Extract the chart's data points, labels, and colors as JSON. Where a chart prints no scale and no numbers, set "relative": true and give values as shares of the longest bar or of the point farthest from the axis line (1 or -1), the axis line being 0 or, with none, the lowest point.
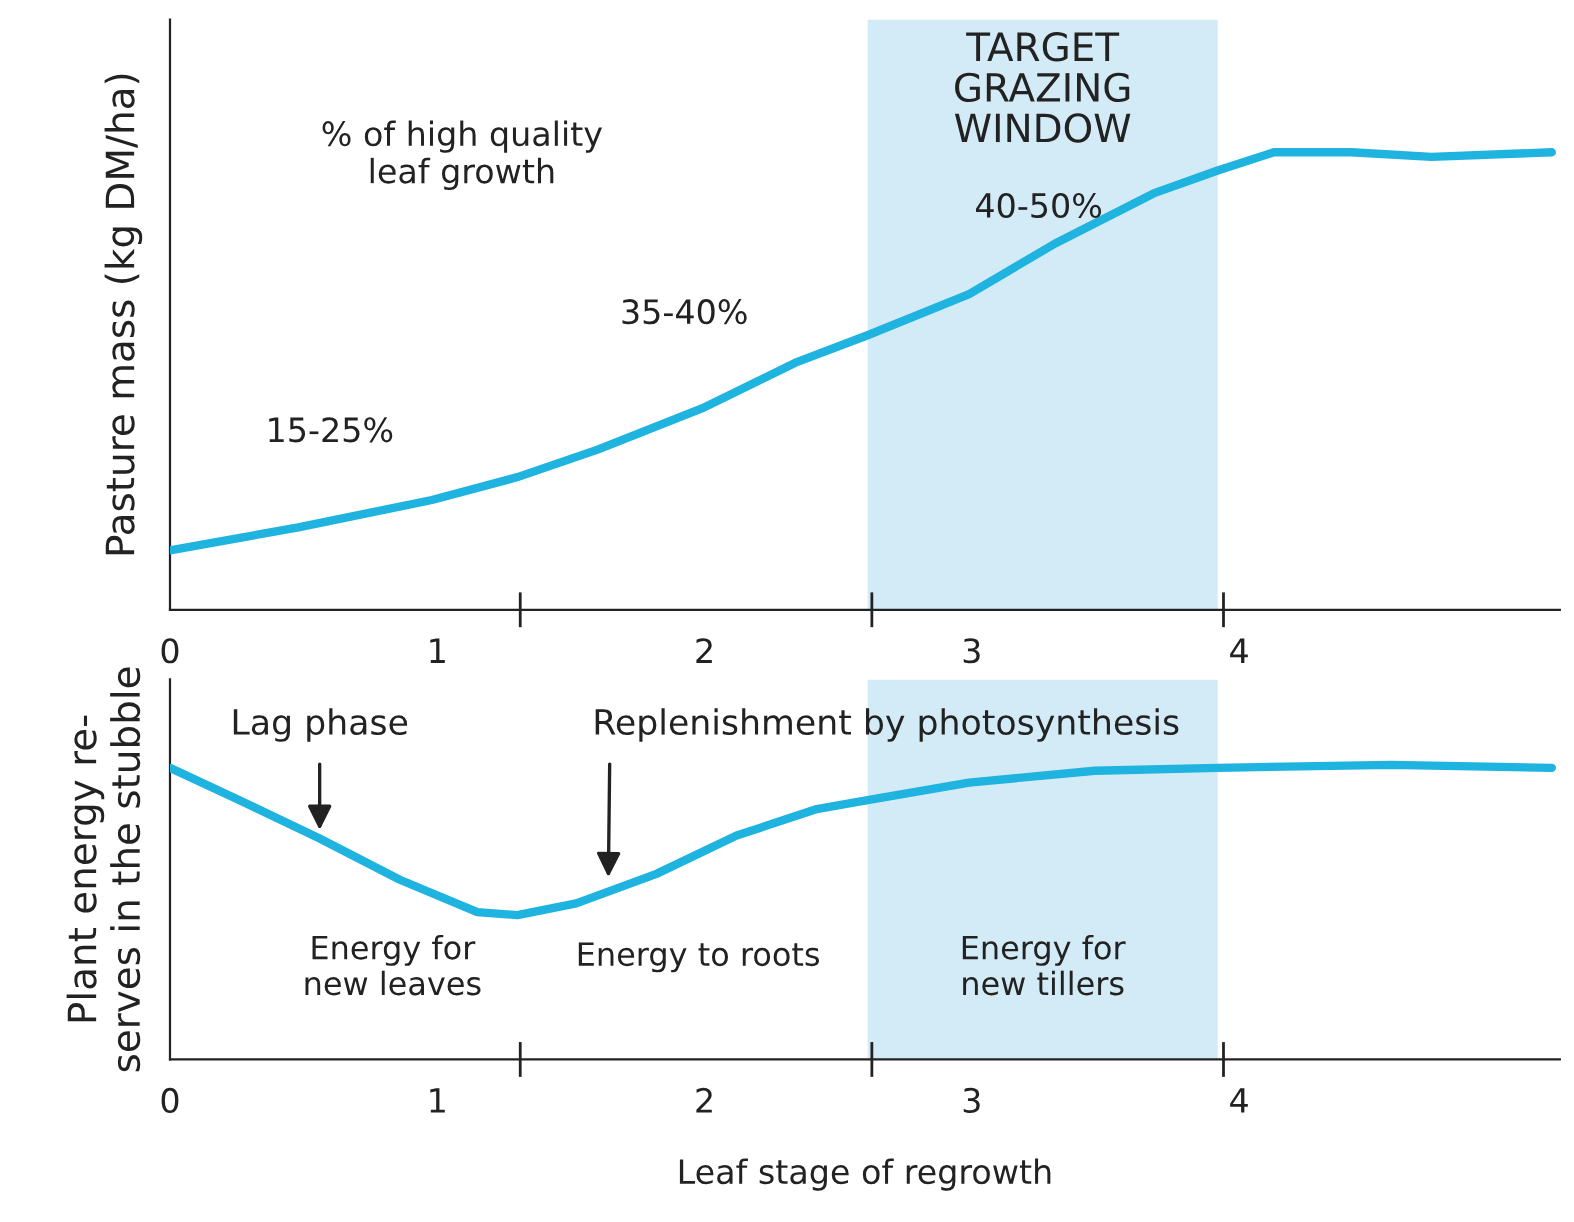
{
  "chart_data": [
    {
      "type": "line",
      "ylabel": "Pasture mass (kg DM/ha)",
      "relative": true,
      "xlim": [
        0,
        5.2
      ],
      "xticks": [
        0,
        1,
        2,
        3,
        4
      ],
      "x": [
        0,
        0.48,
        0.98,
        1.3,
        1.6,
        1.99,
        2.34,
        2.61,
        2.99,
        3.31,
        3.68,
        3.92,
        4.13,
        4.42,
        4.72,
        5.17
      ],
      "series": [
        {
          "color": "#1fb3e0",
          "values": [
            0.13,
            0.18,
            0.24,
            0.29,
            0.35,
            0.44,
            0.54,
            0.6,
            0.69,
            0.8,
            0.91,
            0.96,
            1.0,
            1.0,
            0.99,
            1.0
          ]
        }
      ],
      "bands": [
        {
          "axis": "x",
          "from": 2.61,
          "to": 3.92,
          "label": "TARGET\nGRAZING\nWINDOW",
          "color": "#d3ebf7"
        }
      ],
      "annotations": [
        "% of high quality\nleaf growth",
        "15-25%",
        "35-40%",
        "40-50%"
      ]
    },
    {
      "type": "line",
      "ylabel": "Plant energy re-\nserves in the stubble",
      "xlabel": "Leaf stage of regrowth",
      "relative": true,
      "xlim": [
        0,
        5.2
      ],
      "xticks": [
        0,
        1,
        2,
        3,
        4
      ],
      "x": [
        0,
        0.26,
        0.56,
        0.86,
        1.15,
        1.3,
        1.52,
        1.82,
        2.12,
        2.42,
        2.61,
        2.99,
        3.46,
        3.92,
        4.57,
        5.17
      ],
      "series": [
        {
          "color": "#1fb3e0",
          "values": [
            0.99,
            0.88,
            0.75,
            0.61,
            0.5,
            0.49,
            0.53,
            0.63,
            0.76,
            0.85,
            0.88,
            0.94,
            0.98,
            0.99,
            1.0,
            0.99
          ]
        }
      ],
      "bands": [
        {
          "axis": "x",
          "from": 2.61,
          "to": 3.92,
          "label": "Energy for\nnew tillers",
          "color": "#d3ebf7"
        }
      ],
      "annotations": [
        {
          "text": "Lag phase",
          "x": 0.56,
          "y": 0.76
        },
        {
          "text": "Replenishment by photosynthesis",
          "x": 1.64,
          "y": 0.6
        },
        "Energy for\nnew leaves",
        "Energy to roots"
      ]
    }
  ]
}
